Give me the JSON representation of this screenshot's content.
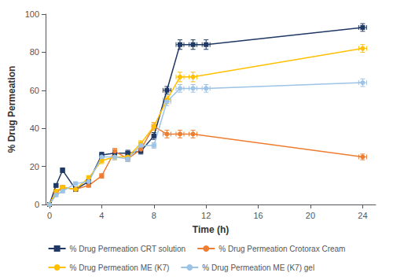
{
  "chart_data": {
    "type": "line",
    "xlabel": "Time (h)",
    "ylabel": "% Drug Permeation",
    "xlim": [
      -0.3,
      25
    ],
    "ylim": [
      0,
      100
    ],
    "xticks": [
      0,
      4,
      8,
      12,
      16,
      20,
      24
    ],
    "yticks": [
      0,
      20,
      40,
      60,
      80,
      100
    ],
    "grid": false,
    "legend": "bottom",
    "series": [
      {
        "name": "% Drug Permeation CRT solution",
        "color": "#1f3864",
        "marker": "square",
        "x": [
          0,
          0.5,
          1,
          2,
          3,
          4,
          5,
          6,
          7,
          8,
          9,
          10,
          11,
          12,
          24
        ],
        "values": [
          0,
          10,
          18,
          8,
          12,
          26,
          27,
          27,
          28,
          36,
          60,
          84,
          84,
          84,
          93
        ],
        "xerr": [
          0,
          0.15,
          0.15,
          0.15,
          0.15,
          0.15,
          0.15,
          0.15,
          0.15,
          0.15,
          0.3,
          0.3,
          0.3,
          0.3,
          0.3
        ],
        "yerr": [
          0,
          0.8,
          1.2,
          0.8,
          1.2,
          1.5,
          1.5,
          1.5,
          1.5,
          1.8,
          2.0,
          2.5,
          2.5,
          2.5,
          2.0
        ]
      },
      {
        "name": "% Drug Permeation Crotorax Cream",
        "color": "#ed7d31",
        "marker": "circle",
        "x": [
          0,
          0.5,
          1,
          2,
          3,
          4,
          5,
          6,
          7,
          8,
          9,
          10,
          11,
          24
        ],
        "values": [
          0,
          6,
          9,
          8,
          10,
          15,
          28,
          24,
          29,
          41,
          37,
          37,
          37,
          25
        ],
        "xerr": [
          0,
          0.15,
          0.15,
          0.15,
          0.15,
          0.15,
          0.15,
          0.15,
          0.15,
          0.15,
          0.3,
          0.3,
          0.3,
          0.3
        ],
        "yerr": [
          0,
          0.8,
          0.8,
          0.8,
          0.8,
          1.2,
          1.5,
          1.5,
          1.5,
          2.0,
          2.0,
          2.0,
          2.0,
          1.5
        ]
      },
      {
        "name": "% Drug Permeation ME (K7)",
        "color": "#ffc000",
        "marker": "circle",
        "x": [
          0,
          0.5,
          1,
          2,
          3,
          4,
          5,
          6,
          7,
          8,
          9,
          10,
          11,
          24
        ],
        "values": [
          0,
          7,
          9,
          8,
          14,
          23,
          25,
          25,
          32,
          41,
          55,
          67,
          67,
          82
        ],
        "xerr": [
          0,
          0.15,
          0.15,
          0.15,
          0.15,
          0.15,
          0.15,
          0.15,
          0.15,
          0.15,
          0.3,
          0.3,
          0.3,
          0.3
        ],
        "yerr": [
          0,
          0.8,
          0.8,
          0.8,
          1.2,
          1.5,
          1.5,
          1.5,
          1.5,
          2.0,
          2.0,
          2.5,
          2.5,
          2.0
        ]
      },
      {
        "name": "% Drug Permeation ME (K7) gel",
        "color": "#9dc3e6",
        "marker": "circle",
        "x": [
          0,
          0.5,
          1,
          2,
          3,
          4,
          5,
          6,
          7,
          8,
          9,
          10,
          11,
          12,
          24
        ],
        "values": [
          0,
          5,
          7,
          11,
          12,
          25,
          25,
          24,
          31,
          31,
          54,
          61,
          61,
          61,
          64
        ],
        "xerr": [
          0,
          0.15,
          0.15,
          0.15,
          0.15,
          0.15,
          0.15,
          0.15,
          0.15,
          0.15,
          0.3,
          0.3,
          0.3,
          0.3,
          0.3
        ],
        "yerr": [
          0,
          0.8,
          0.8,
          0.8,
          1.2,
          1.5,
          1.5,
          1.5,
          1.5,
          1.5,
          2.0,
          2.0,
          2.0,
          2.0,
          2.0
        ]
      }
    ]
  }
}
